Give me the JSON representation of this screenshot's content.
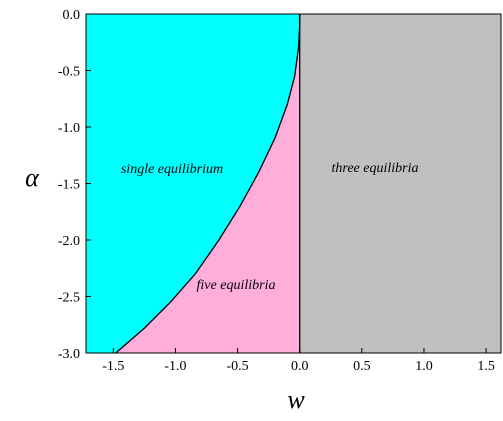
{
  "chart_data": {
    "type": "area",
    "xlabel": "w",
    "ylabel": "α",
    "xlim": [
      -1.72,
      1.62
    ],
    "ylim": [
      -3.0,
      0.0
    ],
    "x_ticks": [
      -1.5,
      -1.0,
      -0.5,
      0.0,
      0.5,
      1.0,
      1.5
    ],
    "y_ticks": [
      0.0,
      -0.5,
      -1.0,
      -1.5,
      -2.0,
      -2.5,
      -3.0
    ],
    "x_tick_labels": [
      "-1.5",
      "-1.0",
      "-0.5",
      "0.0",
      "0.5",
      "1.0",
      "1.5"
    ],
    "y_tick_labels": [
      "0.0",
      "-0.5",
      "-1.0",
      "-1.5",
      "-2.0",
      "-2.5",
      "-3.0"
    ],
    "grid": false,
    "boundary_curve": {
      "x": [
        0.0,
        -0.01,
        -0.04,
        -0.1,
        -0.2,
        -0.33,
        -0.48,
        -0.65,
        -0.84,
        -1.04,
        -1.25,
        -1.48
      ],
      "y": [
        -0.1,
        -0.3,
        -0.55,
        -0.8,
        -1.1,
        -1.4,
        -1.7,
        -2.0,
        -2.3,
        -2.55,
        -2.78,
        -3.0
      ]
    },
    "vertical_boundary_x": 0.0,
    "regions": [
      {
        "label": "single equilibrium",
        "color": "#00ffff"
      },
      {
        "label": "five equilibria",
        "color": "#ffaedc"
      },
      {
        "label": "three equilibria",
        "color": "#c0c0c0"
      }
    ]
  }
}
